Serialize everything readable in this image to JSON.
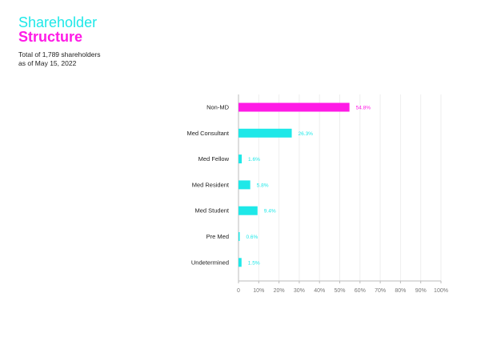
{
  "header": {
    "title_line1": "Shareholder",
    "title_line2": "Structure",
    "subtitle_line1": "Total of 1,789 shareholders",
    "subtitle_line2": "as of May 15, 2022"
  },
  "colors": {
    "primary": "#1ee8e8",
    "highlight": "#ff1ae6"
  },
  "chart_data": {
    "type": "bar",
    "orientation": "horizontal",
    "categories": [
      "Non-MD",
      "Med Consultant",
      "Med Fellow",
      "Med Resident",
      "Med Student",
      "Pre Med",
      "Undetermined"
    ],
    "values": [
      54.8,
      26.3,
      1.6,
      5.8,
      9.4,
      0.6,
      1.5
    ],
    "value_labels": [
      "54.8%",
      "26.3%",
      "1.6%",
      "5.8%",
      "9.4%",
      "0.6%",
      "1.5%"
    ],
    "highlight_category": "Non-MD",
    "xlim": [
      0,
      100
    ],
    "x_ticks": [
      "0",
      "10%",
      "20%",
      "30%",
      "40%",
      "50%",
      "60%",
      "70%",
      "80%",
      "90%",
      "100%"
    ],
    "grid": true,
    "title": "",
    "xlabel": "",
    "ylabel": ""
  }
}
